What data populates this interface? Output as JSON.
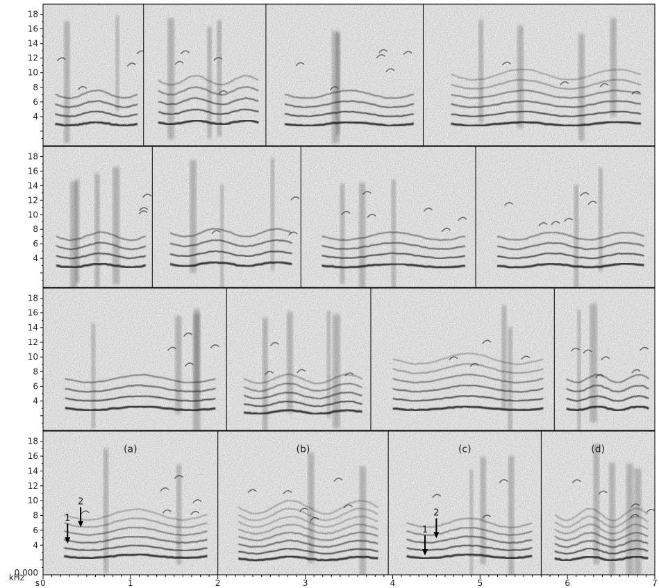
{
  "chart_data": {
    "type": "heatmap",
    "description_type": "spectrogram",
    "ylabel": "kHz",
    "xlabel": "s",
    "xlim": [
      0,
      7
    ],
    "ylim": [
      0,
      19
    ],
    "y_ticks": [
      "18",
      "16",
      "14",
      "12",
      "10",
      "8",
      "6",
      "4"
    ],
    "y_origin_label": "0.000",
    "x_ticks": [
      "0",
      "1",
      "2",
      "3",
      "4",
      "5",
      "6",
      "7"
    ],
    "rows": [
      {
        "segments": [
          {
            "t_start": 0.0,
            "t_end": 1.15,
            "base_khz": 3.0,
            "harmonics": 4
          },
          {
            "t_start": 1.15,
            "t_end": 2.55,
            "base_khz": 3.2,
            "harmonics": 5
          },
          {
            "t_start": 2.55,
            "t_end": 4.35,
            "base_khz": 3.0,
            "harmonics": 4
          },
          {
            "t_start": 4.35,
            "t_end": 7.0,
            "base_khz": 3.0,
            "harmonics": 6
          }
        ]
      },
      {
        "segments": [
          {
            "t_start": 0.0,
            "t_end": 1.25,
            "base_khz": 3.0,
            "harmonics": 4
          },
          {
            "t_start": 1.25,
            "t_end": 2.95,
            "base_khz": 3.2,
            "harmonics": 4
          },
          {
            "t_start": 2.95,
            "t_end": 4.95,
            "base_khz": 3.0,
            "harmonics": 4
          },
          {
            "t_start": 4.95,
            "t_end": 7.0,
            "base_khz": 3.0,
            "harmonics": 4
          }
        ]
      },
      {
        "segments": [
          {
            "t_start": 0.0,
            "t_end": 2.1,
            "base_khz": 3.0,
            "harmonics": 4
          },
          {
            "t_start": 2.1,
            "t_end": 3.75,
            "base_khz": 2.5,
            "harmonics": 5
          },
          {
            "t_start": 3.75,
            "t_end": 5.85,
            "base_khz": 3.0,
            "harmonics": 6
          },
          {
            "t_start": 5.85,
            "t_end": 7.0,
            "base_khz": 3.0,
            "harmonics": 4
          }
        ]
      },
      {
        "segments": [
          {
            "t_start": 0.0,
            "t_end": 2.0,
            "base_khz": 2.5,
            "harmonics": 6,
            "label": "(a)"
          },
          {
            "t_start": 2.0,
            "t_end": 3.95,
            "base_khz": 2.2,
            "harmonics": 8,
            "label": "(b)"
          },
          {
            "t_start": 3.95,
            "t_end": 5.7,
            "base_khz": 2.5,
            "harmonics": 5,
            "label": "(c)"
          },
          {
            "t_start": 5.7,
            "t_end": 7.0,
            "base_khz": 2.2,
            "harmonics": 7,
            "label": "(d)"
          }
        ]
      }
    ],
    "annotations": [
      {
        "text": "1",
        "row": 3,
        "t": 0.28,
        "khz": 7.3
      },
      {
        "text": "2",
        "row": 3,
        "t": 0.43,
        "khz": 9.5
      },
      {
        "text": "1",
        "row": 3,
        "t": 4.37,
        "khz": 5.7
      },
      {
        "text": "2",
        "row": 3,
        "t": 4.5,
        "khz": 8.0
      }
    ]
  }
}
